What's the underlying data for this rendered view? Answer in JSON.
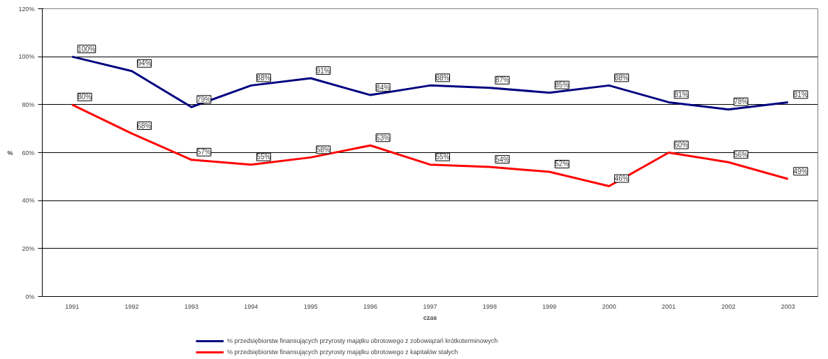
{
  "chart_data": {
    "type": "line",
    "xlabel": "czas",
    "ylabel": "%",
    "categories": [
      "1991",
      "1992",
      "1993",
      "1994",
      "1995",
      "1996",
      "1997",
      "1998",
      "1999",
      "2000",
      "2001",
      "2002",
      "2003"
    ],
    "series": [
      {
        "name": "% przedsiębiorstw finansujących przyrosty majątku obrotowego z zobowiązań krótkoterminowych",
        "color": "#000080",
        "values": [
          100,
          94,
          79,
          88,
          91,
          84,
          88,
          87,
          85,
          88,
          81,
          78,
          81
        ],
        "value_labels": [
          "100%",
          "94%",
          "79%",
          "88%",
          "91%",
          "84%",
          "88%",
          "87%",
          "85%",
          "88%",
          "81%",
          "78%",
          "81%"
        ]
      },
      {
        "name": "% przedsiębiorstw finansujących przyrosty majątku obrotowego z kapitałów stałych",
        "color": "#ff0000",
        "values": [
          80,
          68,
          57,
          55,
          58,
          63,
          55,
          54,
          52,
          46,
          60,
          56,
          49
        ],
        "value_labels": [
          "80%",
          "68%",
          "57%",
          "55%",
          "58%",
          "63%",
          "55%",
          "54%",
          "52%",
          "46%",
          "60%",
          "56%",
          "49%"
        ]
      }
    ],
    "ylim": [
      0,
      120
    ],
    "yticks": [
      {
        "value": 0,
        "label": "0%"
      },
      {
        "value": 20,
        "label": "20%"
      },
      {
        "value": 40,
        "label": "40%"
      },
      {
        "value": 60,
        "label": "60%"
      },
      {
        "value": 80,
        "label": "80%"
      },
      {
        "value": 100,
        "label": "100%"
      },
      {
        "value": 120,
        "label": "120%"
      }
    ],
    "grid": "y",
    "legend": "bottom",
    "marker": "none",
    "line_style": "solid"
  }
}
